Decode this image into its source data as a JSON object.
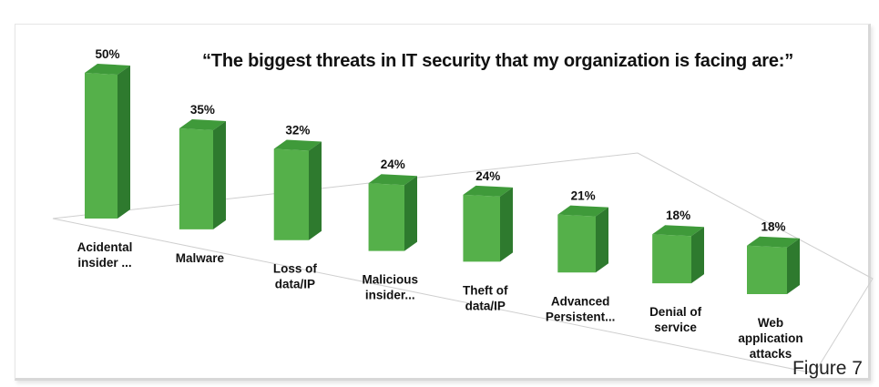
{
  "chart_data": {
    "type": "bar",
    "title": "“The biggest threats in IT security that my organization is facing are:”",
    "categories": [
      [
        "Acidental",
        "insider ..."
      ],
      [
        "Malware"
      ],
      [
        "Loss of",
        "data/IP"
      ],
      [
        "Malicious",
        "insider..."
      ],
      [
        "Theft of",
        "data/IP"
      ],
      [
        "Advanced",
        "Persistent..."
      ],
      [
        "Denial of",
        "service"
      ],
      [
        "Web",
        "application",
        "attacks"
      ]
    ],
    "values": [
      50,
      35,
      32,
      24,
      24,
      21,
      18,
      18
    ],
    "value_labels": [
      "50%",
      "35%",
      "32%",
      "24%",
      "24%",
      "21%",
      "18%",
      "18%"
    ],
    "ylim": [
      0,
      50
    ],
    "grid": false,
    "colors": {
      "front": "#55b04a",
      "side": "#2e7a2e",
      "top": "#3f9a3a"
    }
  },
  "caption": "Figure 7"
}
